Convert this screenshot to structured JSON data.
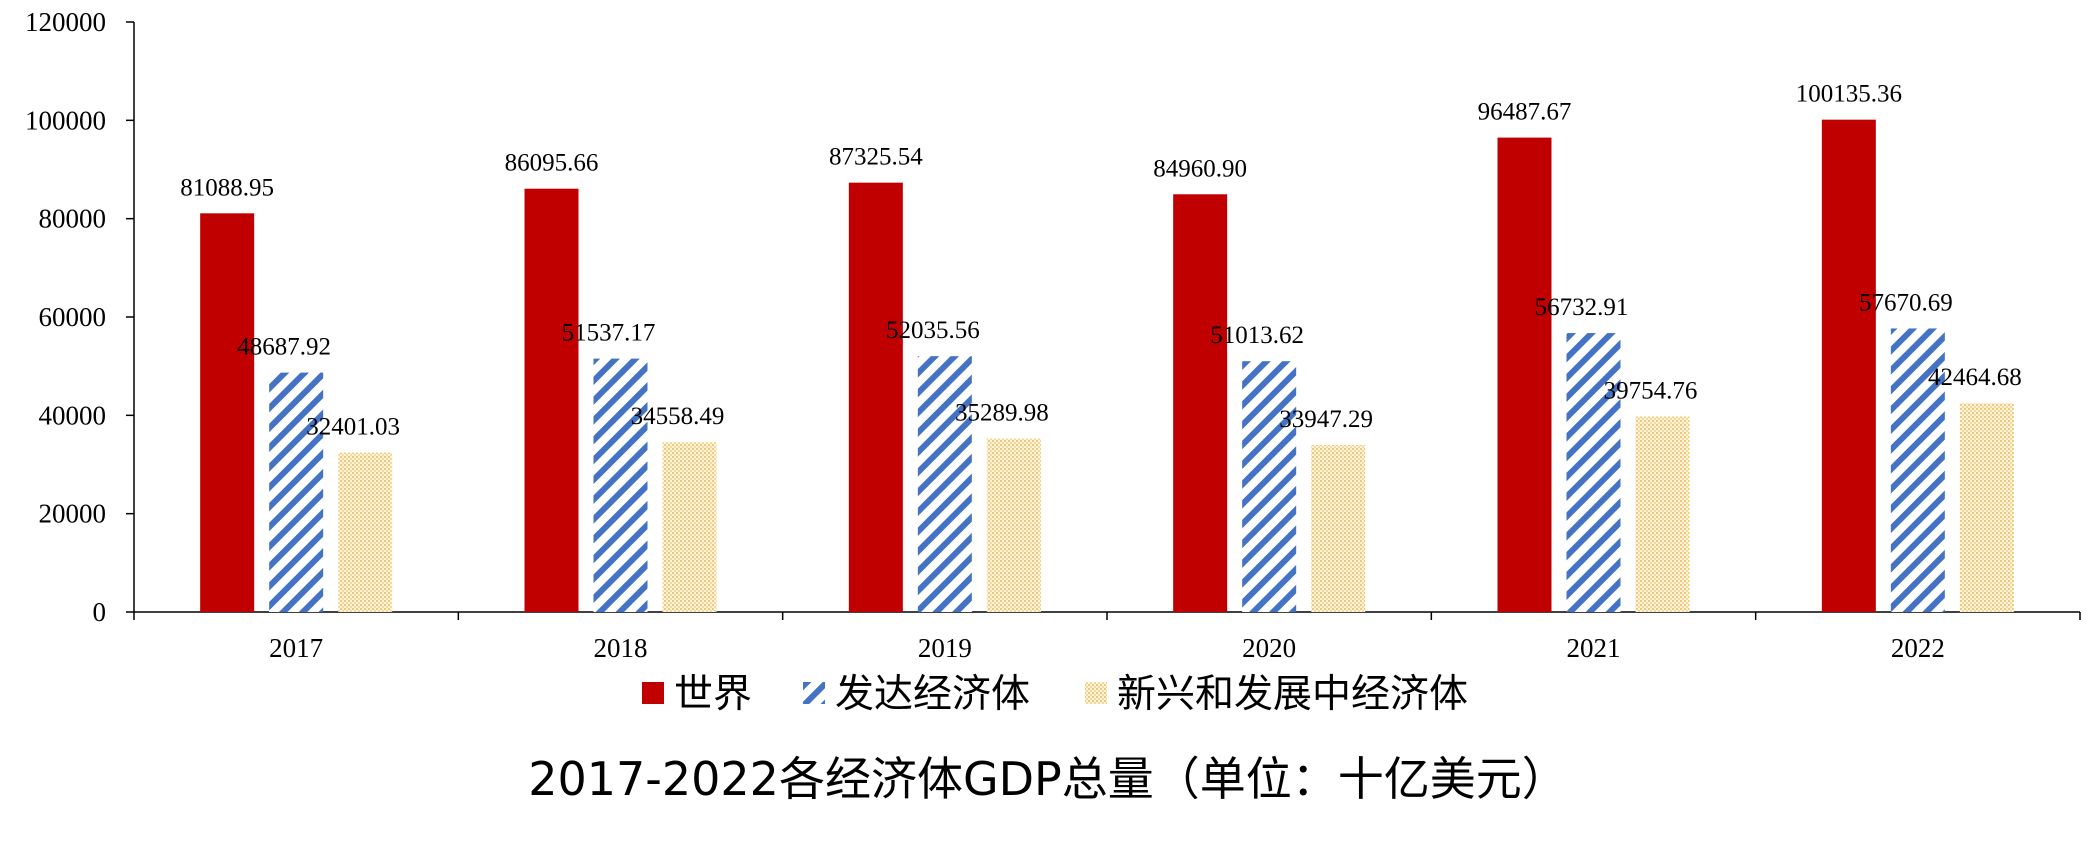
{
  "chart_data": {
    "type": "bar",
    "title": "2017-2022各经济体GDP总量（单位：十亿美元）",
    "xlabel": "",
    "ylabel": "",
    "categories": [
      "2017",
      "2018",
      "2019",
      "2020",
      "2021",
      "2022"
    ],
    "ylim": [
      0,
      120000
    ],
    "yticks": [
      "0",
      "20000",
      "40000",
      "60000",
      "80000",
      "100000",
      "120000"
    ],
    "grid": false,
    "legend_position": "bottom",
    "series": [
      {
        "name": "世界",
        "values": [
          81088.95,
          86095.66,
          87325.54,
          84960.9,
          96487.67,
          100135.36
        ],
        "labels": [
          "81088.95",
          "86095.66",
          "87325.54",
          "84960.90",
          "96487.67",
          "100135.36"
        ],
        "color": "#C00000",
        "pattern": "solid"
      },
      {
        "name": "发达经济体",
        "values": [
          48687.92,
          51537.17,
          52035.56,
          51013.62,
          56732.91,
          57670.69
        ],
        "labels": [
          "48687.92",
          "51537.17",
          "52035.56",
          "51013.62",
          "56732.91",
          "57670.69"
        ],
        "color": "#4472C4",
        "pattern": "diagonal-stripes"
      },
      {
        "name": "新兴和发展中经济体",
        "values": [
          32401.03,
          34558.49,
          35289.98,
          33947.29,
          39754.76,
          42464.68
        ],
        "labels": [
          "32401.03",
          "34558.49",
          "35289.98",
          "33947.29",
          "39754.76",
          "42464.68"
        ],
        "color": "#FBE5B5",
        "pattern": "dots"
      }
    ]
  }
}
